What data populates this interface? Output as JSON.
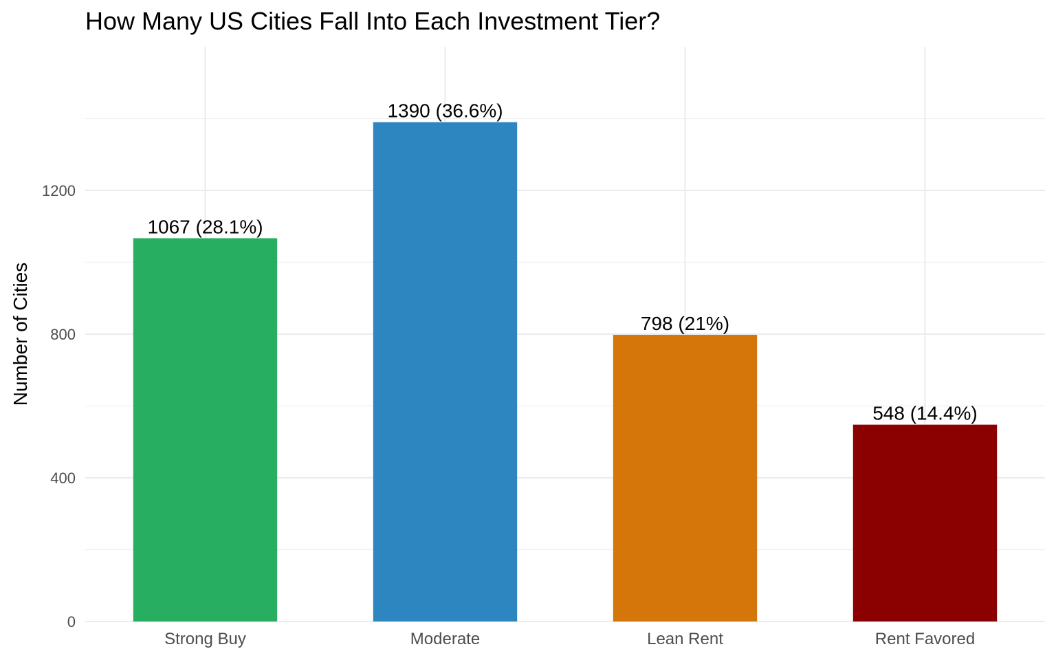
{
  "chart_data": {
    "type": "bar",
    "title": "How Many US Cities Fall Into Each Investment Tier?",
    "xlabel": "",
    "ylabel": "Number of Cities",
    "categories": [
      "Strong Buy",
      "Moderate",
      "Lean Rent",
      "Rent Favored"
    ],
    "values": [
      1067,
      1390,
      798,
      548
    ],
    "data_labels": [
      "1067 (28.1%)",
      "1390 (36.6%)",
      "798 (21%)",
      "548 (14.4%)"
    ],
    "colors": [
      "#27ae60",
      "#2e86c1",
      "#d4760a",
      "#8b0000"
    ],
    "ylim": [
      0,
      1600
    ],
    "y_ticks": [
      0,
      400,
      800,
      1200
    ],
    "y_tick_labels": [
      "0",
      "400",
      "800",
      "1200"
    ],
    "grid": true,
    "legend": "none"
  }
}
